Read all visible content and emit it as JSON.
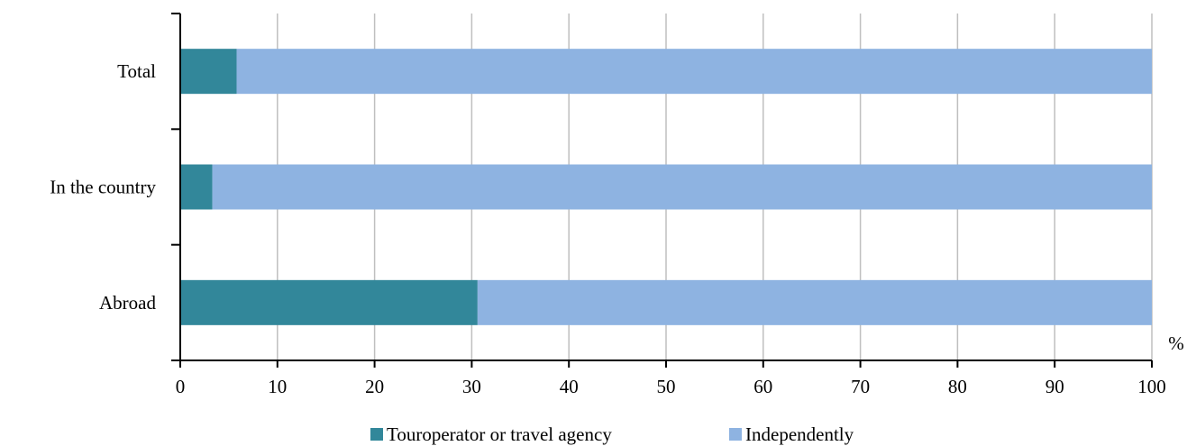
{
  "chart_data": {
    "type": "bar",
    "orientation": "horizontal",
    "stacked": true,
    "categories": [
      "Total",
      "In the country",
      "Abroad"
    ],
    "series": [
      {
        "name": "Touroperator or travel agency",
        "color": "#32879a",
        "values": [
          5.8,
          3.3,
          30.6
        ]
      },
      {
        "name": "Independently",
        "color": "#8eb3e1",
        "values": [
          94.2,
          96.7,
          69.4
        ]
      }
    ],
    "x_ticks": [
      "0",
      "10",
      "20",
      "30",
      "40",
      "50",
      "60",
      "70",
      "80",
      "90",
      "100"
    ],
    "xlim": [
      0,
      100
    ],
    "unit_label": "%",
    "grid": true,
    "legend_position": "bottom"
  }
}
